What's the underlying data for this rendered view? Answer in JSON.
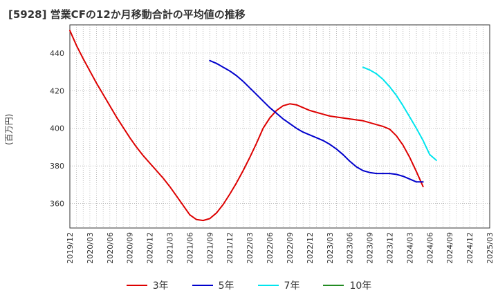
{
  "chart_data": {
    "type": "line",
    "title": "[5928]  営業CFの12か月移動合計の平均値の推移",
    "ylabel": "(百万円)",
    "xlabel": "",
    "ylim": [
      347,
      455
    ],
    "yticks": [
      360,
      380,
      400,
      420,
      440
    ],
    "xlim": [
      "2019-12",
      "2025-03"
    ],
    "xticks": [
      "2019/12",
      "2020/03",
      "2020/06",
      "2020/09",
      "2020/12",
      "2021/03",
      "2021/06",
      "2021/09",
      "2021/12",
      "2022/03",
      "2022/06",
      "2022/09",
      "2022/12",
      "2023/03",
      "2023/06",
      "2023/09",
      "2023/12",
      "2024/03",
      "2024/06",
      "2024/09",
      "2024/12",
      "2025/03"
    ],
    "grid": true,
    "legend": "bottom",
    "series": [
      {
        "name": "3年",
        "color": "#dd0000",
        "points": [
          [
            "2019-12",
            452
          ],
          [
            "2020-01",
            444
          ],
          [
            "2020-02",
            437
          ],
          [
            "2020-03",
            430.5
          ],
          [
            "2020-04",
            424
          ],
          [
            "2020-05",
            418
          ],
          [
            "2020-06",
            412
          ],
          [
            "2020-07",
            406
          ],
          [
            "2020-08",
            400.5
          ],
          [
            "2020-09",
            395
          ],
          [
            "2020-10",
            390
          ],
          [
            "2020-11",
            385.5
          ],
          [
            "2020-12",
            381.5
          ],
          [
            "2021-01",
            377.5
          ],
          [
            "2021-02",
            373.5
          ],
          [
            "2021-03",
            369
          ],
          [
            "2021-04",
            364
          ],
          [
            "2021-05",
            359
          ],
          [
            "2021-06",
            354
          ],
          [
            "2021-07",
            351.5
          ],
          [
            "2021-08",
            351
          ],
          [
            "2021-09",
            352
          ],
          [
            "2021-10",
            355
          ],
          [
            "2021-11",
            359.5
          ],
          [
            "2021-12",
            365
          ],
          [
            "2022-01",
            371
          ],
          [
            "2022-02",
            377.5
          ],
          [
            "2022-03",
            384.5
          ],
          [
            "2022-04",
            392
          ],
          [
            "2022-05",
            400
          ],
          [
            "2022-06",
            405.5
          ],
          [
            "2022-07",
            409.5
          ],
          [
            "2022-08",
            412
          ],
          [
            "2022-09",
            413
          ],
          [
            "2022-10",
            412.5
          ],
          [
            "2022-11",
            411
          ],
          [
            "2022-12",
            409.5
          ],
          [
            "2023-01",
            408.5
          ],
          [
            "2023-02",
            407.5
          ],
          [
            "2023-03",
            406.5
          ],
          [
            "2023-04",
            406
          ],
          [
            "2023-05",
            405.5
          ],
          [
            "2023-06",
            405
          ],
          [
            "2023-07",
            404.5
          ],
          [
            "2023-08",
            404
          ],
          [
            "2023-09",
            403
          ],
          [
            "2023-10",
            402
          ],
          [
            "2023-11",
            401
          ],
          [
            "2023-12",
            399.5
          ],
          [
            "2024-01",
            396
          ],
          [
            "2024-02",
            391
          ],
          [
            "2024-03",
            384.5
          ],
          [
            "2024-04",
            377
          ],
          [
            "2024-05",
            369
          ]
        ]
      },
      {
        "name": "5年",
        "color": "#0000cc",
        "points": [
          [
            "2021-09",
            436
          ],
          [
            "2021-10",
            434.5
          ],
          [
            "2021-11",
            432.5
          ],
          [
            "2021-12",
            430.5
          ],
          [
            "2022-01",
            428
          ],
          [
            "2022-02",
            425
          ],
          [
            "2022-03",
            421.5
          ],
          [
            "2022-04",
            418
          ],
          [
            "2022-05",
            414.5
          ],
          [
            "2022-06",
            411
          ],
          [
            "2022-07",
            408
          ],
          [
            "2022-08",
            405
          ],
          [
            "2022-09",
            402.5
          ],
          [
            "2022-10",
            400
          ],
          [
            "2022-11",
            398
          ],
          [
            "2022-12",
            396.5
          ],
          [
            "2023-01",
            395
          ],
          [
            "2023-02",
            393.5
          ],
          [
            "2023-03",
            391.5
          ],
          [
            "2023-04",
            389
          ],
          [
            "2023-05",
            386
          ],
          [
            "2023-06",
            382.5
          ],
          [
            "2023-07",
            379.5
          ],
          [
            "2023-08",
            377.5
          ],
          [
            "2023-09",
            376.5
          ],
          [
            "2023-10",
            376
          ],
          [
            "2023-11",
            376
          ],
          [
            "2023-12",
            376
          ],
          [
            "2024-01",
            375.5
          ],
          [
            "2024-02",
            374.5
          ],
          [
            "2024-03",
            373
          ],
          [
            "2024-04",
            371.5
          ],
          [
            "2024-05",
            371.5
          ]
        ]
      },
      {
        "name": "7年",
        "color": "#00e5ee",
        "points": [
          [
            "2023-08",
            432.5
          ],
          [
            "2023-09",
            431
          ],
          [
            "2023-10",
            429
          ],
          [
            "2023-11",
            426
          ],
          [
            "2023-12",
            422
          ],
          [
            "2024-01",
            417.5
          ],
          [
            "2024-02",
            412
          ],
          [
            "2024-03",
            406
          ],
          [
            "2024-04",
            400
          ],
          [
            "2024-05",
            393.5
          ],
          [
            "2024-06",
            386
          ],
          [
            "2024-07",
            383
          ]
        ]
      },
      {
        "name": "10年",
        "color": "#228b22",
        "points": []
      }
    ]
  }
}
